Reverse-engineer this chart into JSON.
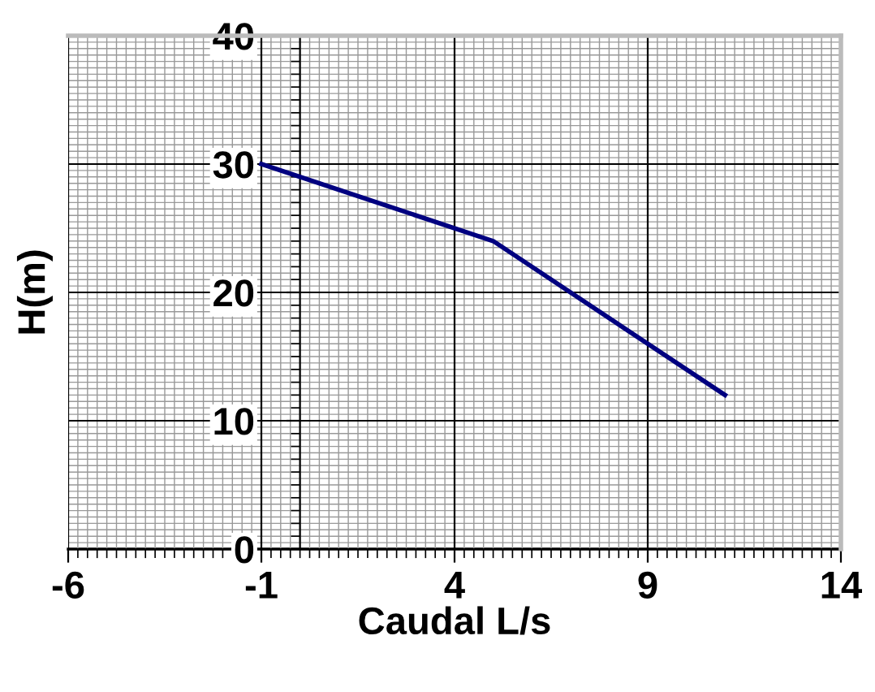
{
  "chart_data": {
    "type": "line",
    "xlabel": "Caudal L/s",
    "ylabel": "H(m)",
    "series": [
      {
        "color": "#000080",
        "x": [
          -1,
          5,
          11
        ],
        "values": [
          30,
          24,
          12
        ]
      }
    ],
    "xlim": [
      -6,
      14
    ],
    "xticks": [
      -6,
      -1,
      4,
      9,
      14
    ],
    "ylim": [
      0,
      40
    ],
    "yticks": [
      0,
      10,
      20,
      30,
      40
    ],
    "grid": true,
    "marker": "none",
    "line_style": "solid"
  }
}
